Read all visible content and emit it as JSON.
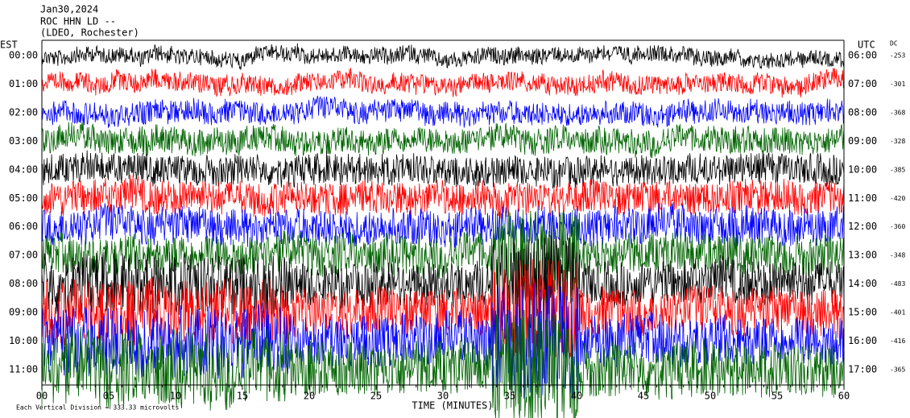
{
  "header": {
    "date": "Jan30,2024",
    "station": "ROC HHN LD --",
    "network": "(LDEO, Rochester)"
  },
  "left_label": "EST",
  "right_label": "UTC",
  "dc_label": "DC",
  "rows": [
    {
      "est": "00:00",
      "utc": "06:00",
      "dc": -253,
      "color": "#000000"
    },
    {
      "est": "01:00",
      "utc": "07:00",
      "dc": -301,
      "color": "#ff0000"
    },
    {
      "est": "02:00",
      "utc": "08:00",
      "dc": -368,
      "color": "#0000ff"
    },
    {
      "est": "03:00",
      "utc": "09:00",
      "dc": -328,
      "color": "#006400"
    },
    {
      "est": "04:00",
      "utc": "10:00",
      "dc": -385,
      "color": "#000000"
    },
    {
      "est": "05:00",
      "utc": "11:00",
      "dc": -420,
      "color": "#ff0000"
    },
    {
      "est": "06:00",
      "utc": "12:00",
      "dc": -360,
      "color": "#0000ff"
    },
    {
      "est": "07:00",
      "utc": "13:00",
      "dc": -348,
      "color": "#006400"
    },
    {
      "est": "08:00",
      "utc": "14:00",
      "dc": -483,
      "color": "#000000"
    },
    {
      "est": "09:00",
      "utc": "15:00",
      "dc": -401,
      "color": "#ff0000"
    },
    {
      "est": "10:00",
      "utc": "16:00",
      "dc": -416,
      "color": "#0000ff"
    },
    {
      "est": "11:00",
      "utc": "17:00",
      "dc": -365,
      "color": "#006400"
    }
  ],
  "x_axis": {
    "title": "TIME (MINUTES)",
    "ticks": [
      "00",
      "05",
      "10",
      "15",
      "20",
      "25",
      "30",
      "35",
      "40",
      "45",
      "50",
      "55",
      "60"
    ]
  },
  "footer": "Each Vertical Division =  333.33 microvolts"
}
